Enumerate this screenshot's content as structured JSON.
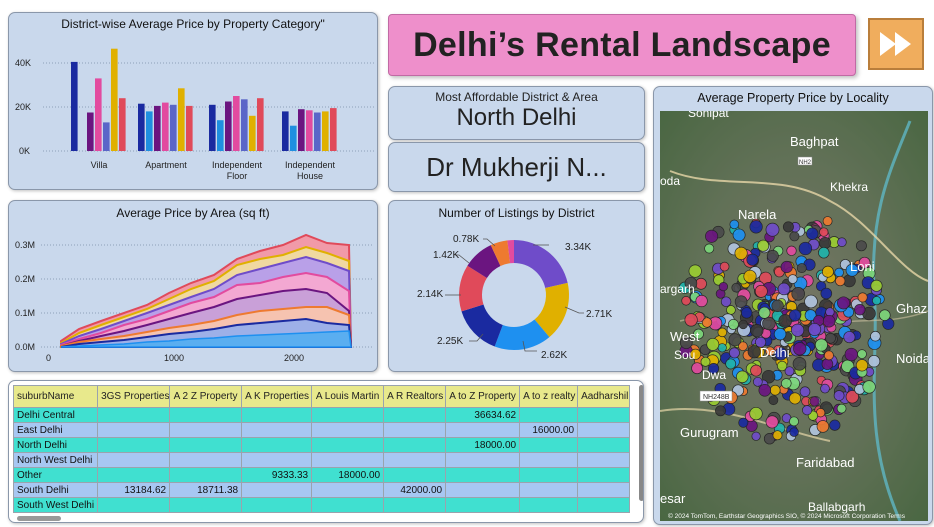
{
  "title": "Delhi’s Rental Landscape",
  "afford": {
    "label": "Most Affordable District & Area",
    "district": "North Delhi",
    "locality": "Dr Mukherji N..."
  },
  "icons": {
    "forward": "fast-forward-icon"
  },
  "colors": {
    "banner": "#ee8fcb",
    "panel": "#c9d8ec",
    "row_teal": "#40e0d0",
    "row_blue": "#a7c7f2",
    "header": "#e8e98c",
    "button": "#f0ad5d"
  },
  "charts": {
    "category": {
      "title": "District-wise Average Price by Property Category\"",
      "yticks": [
        "40K",
        "20K",
        "0K"
      ],
      "groups": [
        {
          "label_lines": [
            "Villa"
          ],
          "values": [
            40500,
            0,
            17500,
            33000,
            13000,
            46500,
            24000
          ]
        },
        {
          "label_lines": [
            "Apartment"
          ],
          "values": [
            21500,
            18000,
            20500,
            22000,
            21000,
            28500,
            20500
          ]
        },
        {
          "label_lines": [
            "Independent",
            "Floor"
          ],
          "values": [
            21000,
            14000,
            22500,
            25000,
            23500,
            16000,
            24000
          ]
        },
        {
          "label_lines": [
            "Independent",
            "House"
          ],
          "values": [
            18000,
            11500,
            19000,
            18500,
            17500,
            18000,
            19500
          ]
        }
      ],
      "colors": [
        "#1a2aa0",
        "#1f8fe0",
        "#6b1580",
        "#e24b9f",
        "#5a66c8",
        "#e0b000",
        "#e04a5a"
      ]
    },
    "area": {
      "title": "Average Price by Area (sq ft)",
      "yticks": [
        "0.3M",
        "0.2M",
        "0.1M",
        "0.0M"
      ],
      "xticks": [
        "0",
        "1000",
        "2000"
      ]
    },
    "donut": {
      "title": "Number of Listings by District",
      "slices": [
        {
          "value": 3.34,
          "label": "3.34K",
          "color": "#6f4cc9"
        },
        {
          "value": 2.71,
          "label": "2.71K",
          "color": "#e0b000"
        },
        {
          "value": 2.62,
          "label": "2.62K",
          "color": "#1e90f0"
        },
        {
          "value": 2.25,
          "label": "2.25K",
          "color": "#1a2aa0"
        },
        {
          "value": 2.14,
          "label": "2.14K",
          "color": "#e04a5a"
        },
        {
          "value": 1.42,
          "label": "1.42K",
          "color": "#6b1580"
        },
        {
          "value": 0.78,
          "label": "0.78K",
          "color": "#ee7a30"
        },
        {
          "value": 0.3,
          "label": "",
          "color": "#e24b9f"
        }
      ]
    },
    "map": {
      "title": "Average Property Price by Locality",
      "places": [
        "Sonipat",
        "Baghpat",
        "Khekra",
        "oda",
        "Narela",
        "Loni",
        "argarh",
        "Ghaz",
        "West",
        "Sou",
        "Delhi",
        "Noida",
        "Dwa",
        "NH248B",
        "Gurugram",
        "Faridabad",
        "esar",
        "Ballabgarh",
        "NH2"
      ],
      "credit": "© 2024 TomTom, Earthstar Geographics SIO, © 2024 Microsoft Corporation  Terms"
    }
  },
  "table": {
    "columns": [
      "suburbName",
      "3GS Properties",
      "A 2 Z Property",
      "A K Properties",
      "A Louis Martin",
      "A R Realtors",
      "A to Z Property",
      "A to z realty",
      "Aadharshil"
    ],
    "rows": [
      [
        "Delhi Central",
        "",
        "",
        "",
        "",
        "",
        "36634.62",
        "",
        ""
      ],
      [
        "East Delhi",
        "",
        "",
        "",
        "",
        "",
        "",
        "16000.00",
        ""
      ],
      [
        "North Delhi",
        "",
        "",
        "",
        "",
        "",
        "18000.00",
        "",
        ""
      ],
      [
        "North West Delhi",
        "",
        "",
        "",
        "",
        "",
        "",
        "",
        ""
      ],
      [
        "Other",
        "",
        "",
        "9333.33",
        "18000.00",
        "",
        "",
        "",
        ""
      ],
      [
        "South Delhi",
        "13184.62",
        "18711.38",
        "",
        "",
        "42000.00",
        "",
        "",
        ""
      ],
      [
        "South West Delhi",
        "",
        "",
        "",
        "",
        "",
        "",
        "",
        ""
      ]
    ]
  }
}
